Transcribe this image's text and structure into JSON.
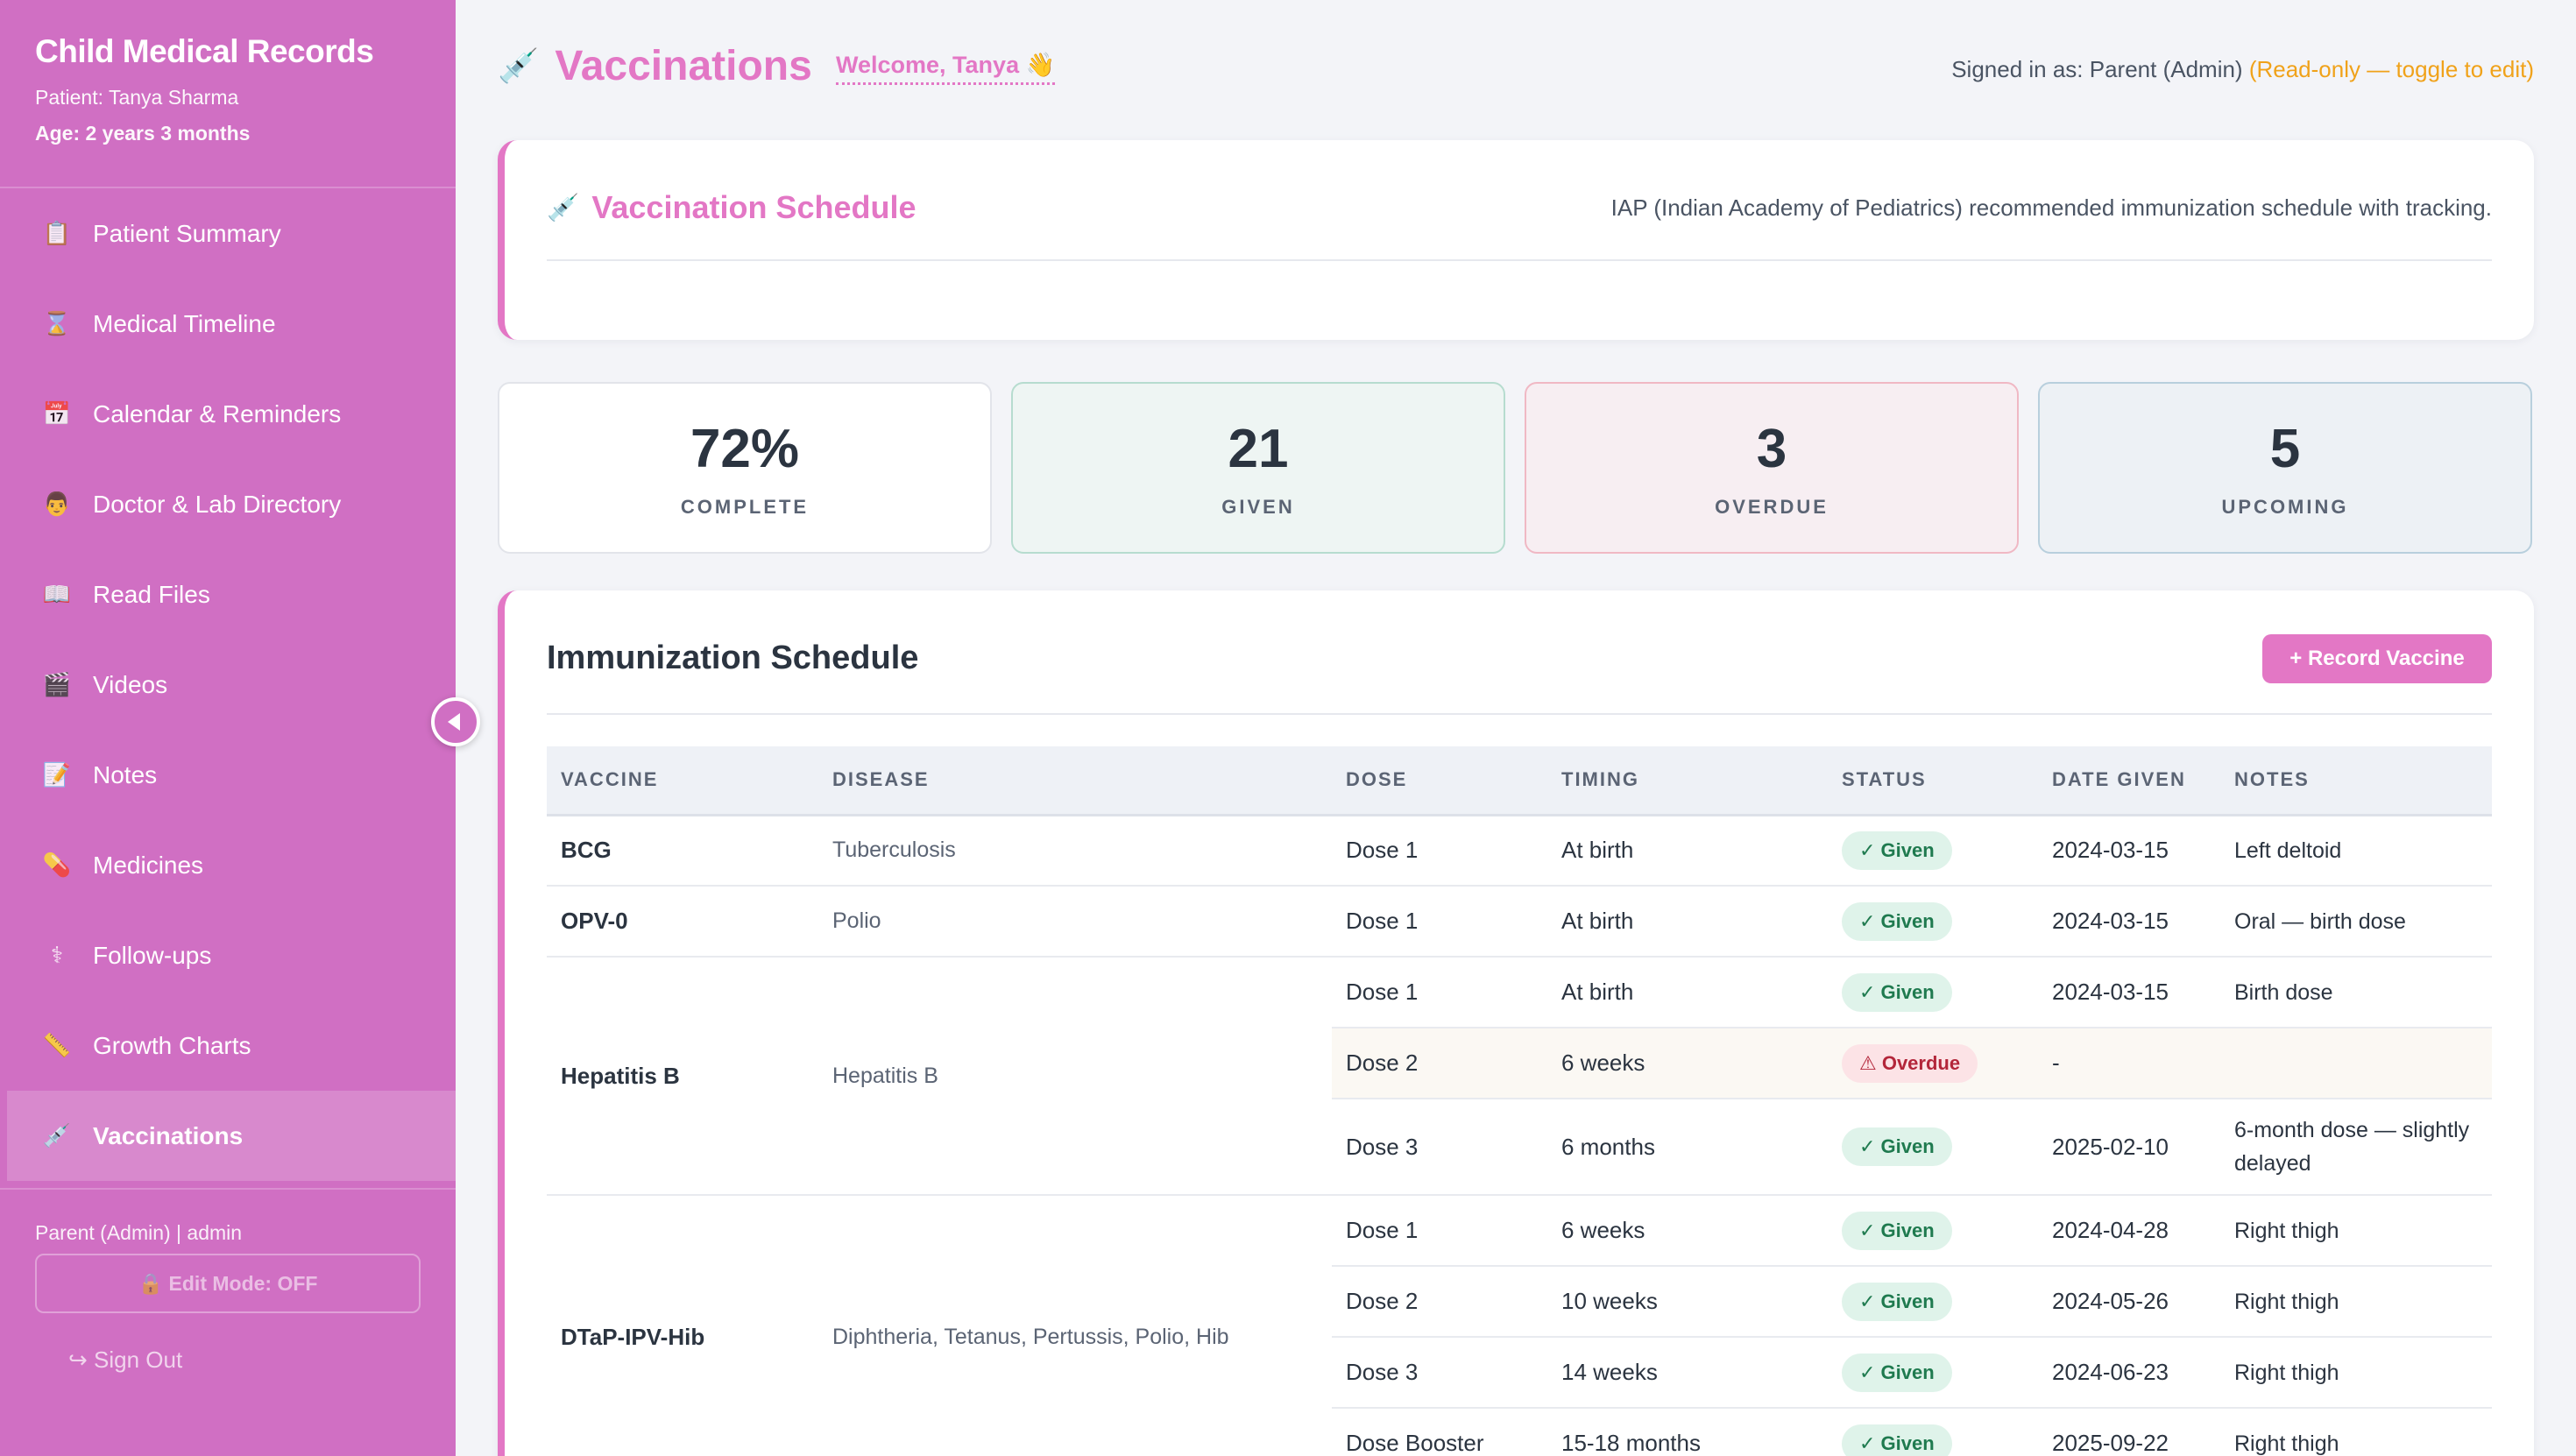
{
  "app": {
    "title": "Child Medical Records",
    "patient": "Patient: Tanya Sharma",
    "age": "Age: 2 years 3 months"
  },
  "sidebar": {
    "items": [
      {
        "label": "Patient Summary",
        "icon": "clipboard-icon",
        "glyph": "📋"
      },
      {
        "label": "Medical Timeline",
        "icon": "hourglass-icon",
        "glyph": "⌛"
      },
      {
        "label": "Calendar & Reminders",
        "icon": "calendar-icon",
        "glyph": "📅"
      },
      {
        "label": "Doctor & Lab Directory",
        "icon": "doctor-icon",
        "glyph": "👨"
      },
      {
        "label": "Read Files",
        "icon": "book-icon",
        "glyph": "📖"
      },
      {
        "label": "Videos",
        "icon": "clapper-icon",
        "glyph": "🎬"
      },
      {
        "label": "Notes",
        "icon": "memo-icon",
        "glyph": "📝"
      },
      {
        "label": "Medicines",
        "icon": "pill-icon",
        "glyph": "💊"
      },
      {
        "label": "Follow-ups",
        "icon": "stethoscope-icon",
        "glyph": "⚕"
      },
      {
        "label": "Growth Charts",
        "icon": "ruler-icon",
        "glyph": "📏"
      },
      {
        "label": "Vaccinations",
        "icon": "syringe-icon",
        "glyph": "💉"
      }
    ],
    "active_index": 10,
    "user": "Parent (Admin) | admin",
    "edit_mode": "🔒 Edit Mode: OFF",
    "sign_out": "↪ Sign Out"
  },
  "header": {
    "title": "Vaccinations",
    "title_glyph": "💉",
    "welcome": "Welcome, Tanya 👋",
    "signed_in": "Signed in as: Parent (Admin) ",
    "read_only": "(Read-only — toggle to edit)"
  },
  "schedule_card": {
    "title": "Vaccination Schedule",
    "glyph": "💉",
    "description": "IAP (Indian Academy of Pediatrics) recommended immunization schedule with tracking."
  },
  "stats": {
    "complete": {
      "value": "72%",
      "label": "COMPLETE"
    },
    "given": {
      "value": "21",
      "label": "GIVEN"
    },
    "overdue": {
      "value": "3",
      "label": "OVERDUE"
    },
    "upcoming": {
      "value": "5",
      "label": "UPCOMING"
    }
  },
  "immunization": {
    "title": "Immunization Schedule",
    "record_button": "+ Record Vaccine",
    "headers": [
      "VACCINE",
      "DISEASE",
      "DOSE",
      "TIMING",
      "STATUS",
      "DATE GIVEN",
      "NOTES"
    ],
    "rows": {
      "bcg": {
        "vaccine": "BCG",
        "disease": "Tuberculosis",
        "dose": "Dose 1",
        "timing": "At birth",
        "status": "✓ Given",
        "date": "2024-03-15",
        "notes": "Left deltoid"
      },
      "opv0": {
        "vaccine": "OPV-0",
        "disease": "Polio",
        "dose": "Dose 1",
        "timing": "At birth",
        "status": "✓ Given",
        "date": "2024-03-15",
        "notes": "Oral — birth dose"
      },
      "hepb": {
        "vaccine": "Hepatitis B",
        "disease": "Hepatitis B",
        "doses": [
          {
            "dose": "Dose 1",
            "timing": "At birth",
            "status": "✓ Given",
            "date": "2024-03-15",
            "notes": "Birth dose"
          },
          {
            "dose": "Dose 2",
            "timing": "6 weeks",
            "status": "⚠ Overdue",
            "date": "-",
            "notes": ""
          },
          {
            "dose": "Dose 3",
            "timing": "6 months",
            "status": "✓ Given",
            "date": "2025-02-10",
            "notes": "6-month dose — slightly delayed"
          }
        ]
      },
      "dtap": {
        "vaccine": "DTaP-IPV-Hib",
        "disease": "Diphtheria, Tetanus, Pertussis, Polio, Hib",
        "doses": [
          {
            "dose": "Dose 1",
            "timing": "6 weeks",
            "status": "✓ Given",
            "date": "2024-04-28",
            "notes": "Right thigh"
          },
          {
            "dose": "Dose 2",
            "timing": "10 weeks",
            "status": "✓ Given",
            "date": "2024-05-26",
            "notes": "Right thigh"
          },
          {
            "dose": "Dose 3",
            "timing": "14 weeks",
            "status": "✓ Given",
            "date": "2024-06-23",
            "notes": "Right thigh"
          },
          {
            "dose": "Dose Booster",
            "timing": "15-18 months",
            "status": "✓ Given",
            "date": "2025-09-22",
            "notes": "Right thigh"
          }
        ]
      }
    }
  },
  "colors": {
    "sidebar": "#d06fc3",
    "accent": "#e377c5",
    "warning": "#f0a21a",
    "given": "#1f7a4f",
    "overdue": "#b3263a"
  }
}
